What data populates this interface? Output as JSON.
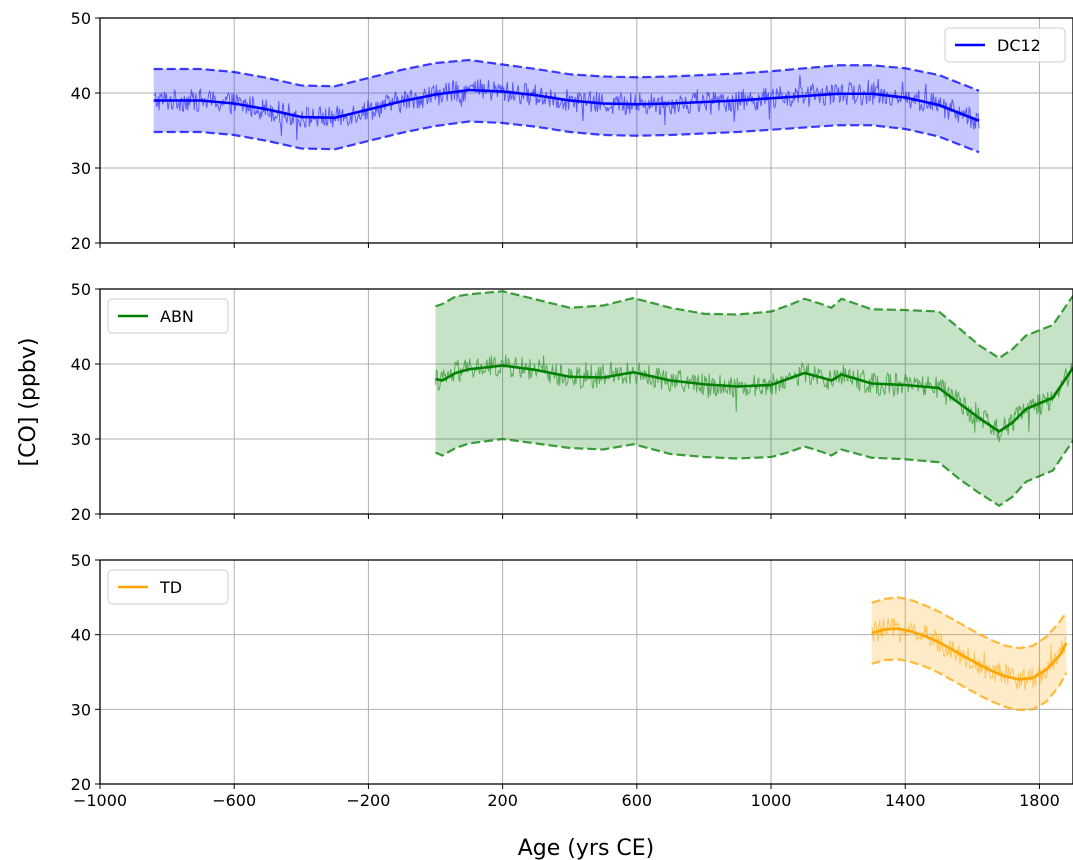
{
  "chart_data": {
    "type": "line",
    "xlabel": "Age (yrs CE)",
    "ylabel": "[CO] (ppbv)",
    "xlim": [
      -1000,
      1900
    ],
    "x_ticks": [
      -1000,
      -600,
      -200,
      200,
      600,
      1000,
      1400,
      1800
    ],
    "x_tick_labels": [
      "−1000",
      "−600",
      "−200",
      "200",
      "600",
      "1000",
      "1400",
      "1800"
    ],
    "grid": true,
    "panels": [
      {
        "ylim": [
          20,
          50
        ],
        "y_ticks": [
          20,
          30,
          40,
          50
        ],
        "legend_position": "top-right",
        "series": [
          {
            "name": "DC12",
            "color": "#0000ff",
            "x": [
              -840,
              -700,
              -600,
              -500,
              -400,
              -300,
              -200,
              -100,
              0,
              100,
              200,
              300,
              400,
              500,
              600,
              700,
              800,
              900,
              1000,
              1100,
              1200,
              1300,
              1400,
              1500,
              1620
            ],
            "y": [
              39.0,
              39.0,
              38.6,
              37.8,
              36.8,
              36.7,
              37.8,
              38.9,
              39.8,
              40.4,
              40.2,
              39.7,
              39.0,
              38.6,
              38.5,
              38.6,
              38.8,
              39.0,
              39.3,
              39.6,
              39.9,
              39.9,
              39.4,
              38.4,
              36.3
            ],
            "upper": [
              43.2,
              43.2,
              42.8,
              42.0,
              41.0,
              40.9,
              42.0,
              43.1,
              44.0,
              44.4,
              43.8,
              43.2,
              42.5,
              42.2,
              42.1,
              42.2,
              42.4,
              42.6,
              42.9,
              43.3,
              43.7,
              43.7,
              43.3,
              42.4,
              40.3
            ],
            "lower": [
              34.8,
              34.8,
              34.4,
              33.6,
              32.6,
              32.5,
              33.6,
              34.7,
              35.6,
              36.2,
              36.0,
              35.5,
              34.8,
              34.4,
              34.3,
              34.4,
              34.6,
              34.8,
              35.1,
              35.4,
              35.7,
              35.7,
              35.2,
              34.2,
              32.1
            ]
          }
        ]
      },
      {
        "ylim": [
          20,
          50
        ],
        "y_ticks": [
          20,
          30,
          40,
          50
        ],
        "legend_position": "top-left",
        "series": [
          {
            "name": "ABN",
            "color": "#008000",
            "x": [
              0,
              20,
              60,
              100,
              200,
              300,
              400,
              500,
              590,
              700,
              800,
              900,
              1000,
              1050,
              1100,
              1150,
              1180,
              1210,
              1300,
              1400,
              1500,
              1560,
              1620,
              1680,
              1720,
              1760,
              1840,
              1900
            ],
            "y": [
              38.0,
              37.8,
              38.8,
              39.3,
              39.8,
              39.2,
              38.3,
              38.2,
              38.9,
              37.8,
              37.3,
              37.0,
              37.2,
              38.0,
              38.8,
              38.2,
              37.8,
              38.6,
              37.4,
              37.2,
              36.8,
              34.8,
              32.8,
              31.0,
              32.2,
              34.0,
              35.5,
              39.5
            ],
            "upper": [
              47.7,
              48.0,
              49.0,
              49.3,
              49.7,
              48.6,
              47.5,
              47.8,
              48.8,
              47.5,
              46.7,
              46.6,
              47.0,
              47.8,
              48.7,
              48.0,
              47.5,
              48.7,
              47.3,
              47.2,
              47.0,
              44.8,
              42.5,
              40.8,
              42.0,
              43.8,
              45.2,
              49.1
            ],
            "lower": [
              28.2,
              27.8,
              28.8,
              29.4,
              30.0,
              29.4,
              28.8,
              28.6,
              29.3,
              28.0,
              27.6,
              27.4,
              27.6,
              28.2,
              29.0,
              28.3,
              27.8,
              28.6,
              27.5,
              27.3,
              26.9,
              24.7,
              22.8,
              21.1,
              22.3,
              24.3,
              25.8,
              29.8
            ]
          }
        ]
      },
      {
        "ylim": [
          20,
          50
        ],
        "y_ticks": [
          20,
          30,
          40,
          50
        ],
        "legend_position": "top-left",
        "series": [
          {
            "name": "TD",
            "color": "#ffa500",
            "x": [
              1300,
              1340,
              1380,
              1420,
              1460,
              1500,
              1540,
              1580,
              1620,
              1660,
              1700,
              1740,
              1780,
              1820,
              1860,
              1880
            ],
            "y": [
              40.2,
              40.7,
              40.8,
              40.4,
              39.8,
              39.0,
              38.0,
              37.0,
              36.0,
              35.1,
              34.4,
              34.0,
              34.2,
              35.3,
              37.2,
              38.9
            ],
            "upper": [
              44.3,
              44.8,
              45.0,
              44.6,
              43.9,
              43.1,
              42.1,
              41.1,
              40.1,
              39.2,
              38.5,
              38.2,
              38.5,
              39.7,
              41.7,
              43.0
            ],
            "lower": [
              36.1,
              36.6,
              36.7,
              36.3,
              35.7,
              34.9,
              33.9,
              32.9,
              31.9,
              31.0,
              30.3,
              29.9,
              30.0,
              31.0,
              33.2,
              34.9
            ]
          }
        ]
      }
    ]
  }
}
